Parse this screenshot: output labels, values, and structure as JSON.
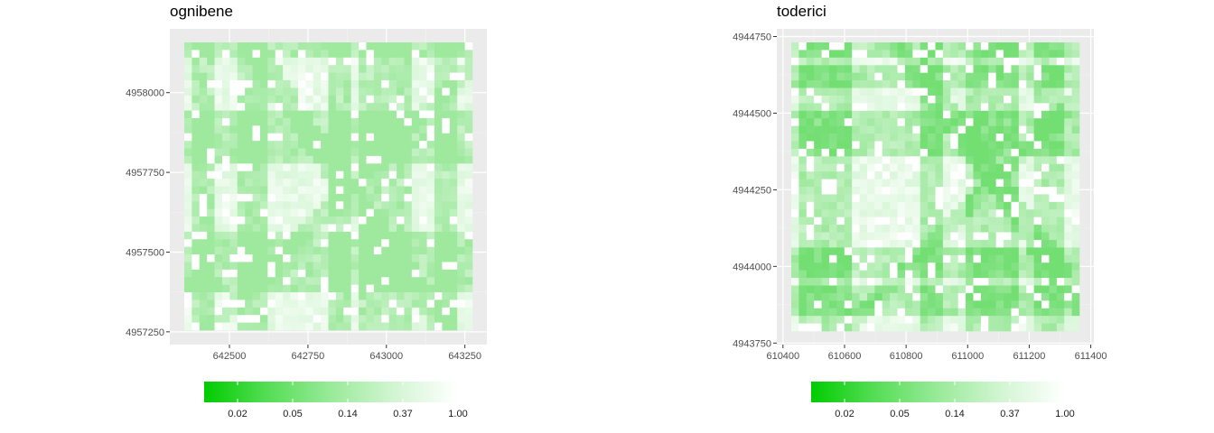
{
  "chart_data": [
    {
      "type": "heatmap",
      "title": "ognibene",
      "xlabel": "",
      "ylabel": "",
      "x_ticks": [
        642500,
        642750,
        643000,
        643250
      ],
      "x_tick_labels": [
        "642500",
        "642750",
        "643000",
        "643250"
      ],
      "y_ticks": [
        4957250,
        4957500,
        4957750,
        4958000
      ],
      "y_tick_labels": [
        "4957250",
        "4957500",
        "4957750",
        "4958000"
      ],
      "xlim": [
        642310,
        643320
      ],
      "ylim": [
        4957210,
        4958200
      ],
      "grid": true,
      "colorbar": {
        "position": "bottom",
        "low_color": "#00cc00",
        "high_color": "#ffffff",
        "tick_labels": [
          "0.02",
          "0.05",
          "0.14",
          "0.37",
          "1.00"
        ]
      }
    },
    {
      "type": "heatmap",
      "title": "toderici",
      "xlabel": "",
      "ylabel": "",
      "x_ticks": [
        610400,
        610600,
        610800,
        611000,
        611200,
        611400
      ],
      "x_tick_labels": [
        "610400",
        "610600",
        "610800",
        "611000",
        "611200",
        "611400"
      ],
      "y_ticks": [
        4943750,
        4944000,
        4944250,
        4944500,
        4944750
      ],
      "y_tick_labels": [
        "4943750",
        "4944000",
        "4944250",
        "4944500",
        "4944750"
      ],
      "xlim": [
        610380,
        611410
      ],
      "ylim": [
        4943745,
        4944775
      ],
      "grid": true,
      "colorbar": {
        "position": "bottom",
        "low_color": "#00cc00",
        "high_color": "#ffffff",
        "tick_labels": [
          "0.02",
          "0.05",
          "0.14",
          "0.37",
          "1.00"
        ]
      }
    }
  ]
}
